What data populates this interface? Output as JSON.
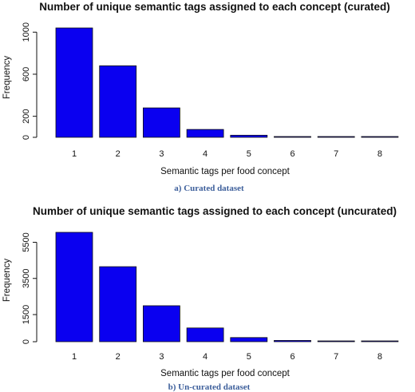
{
  "chart_data": [
    {
      "type": "bar",
      "title": "Number of unique semantic tags assigned to each concept (curated)",
      "xlabel": "Semantic tags per food concept",
      "ylabel": "Frequency",
      "categories": [
        "1",
        "2",
        "3",
        "4",
        "5",
        "6",
        "7",
        "8"
      ],
      "values": [
        1040,
        680,
        280,
        75,
        20,
        5,
        3,
        2
      ],
      "ylim": [
        0,
        1040
      ],
      "yticks": [
        "0",
        "200",
        "600",
        "1000"
      ],
      "caption": "a) Curated dataset",
      "bar_color": "#0a00f0"
    },
    {
      "type": "bar",
      "title": "Number of unique semantic tags assigned to each concept (uncurated)",
      "xlabel": "Semantic tags per food concept",
      "ylabel": "Frequency",
      "categories": [
        "1",
        "2",
        "3",
        "4",
        "5",
        "6",
        "7",
        "8"
      ],
      "values": [
        6050,
        4150,
        1990,
        760,
        230,
        70,
        30,
        20
      ],
      "ylim": [
        0,
        6050
      ],
      "yticks": [
        "0",
        "1500",
        "3500",
        "5500"
      ],
      "caption": "b) Un-curated dataset",
      "bar_color": "#0a00f0"
    }
  ]
}
